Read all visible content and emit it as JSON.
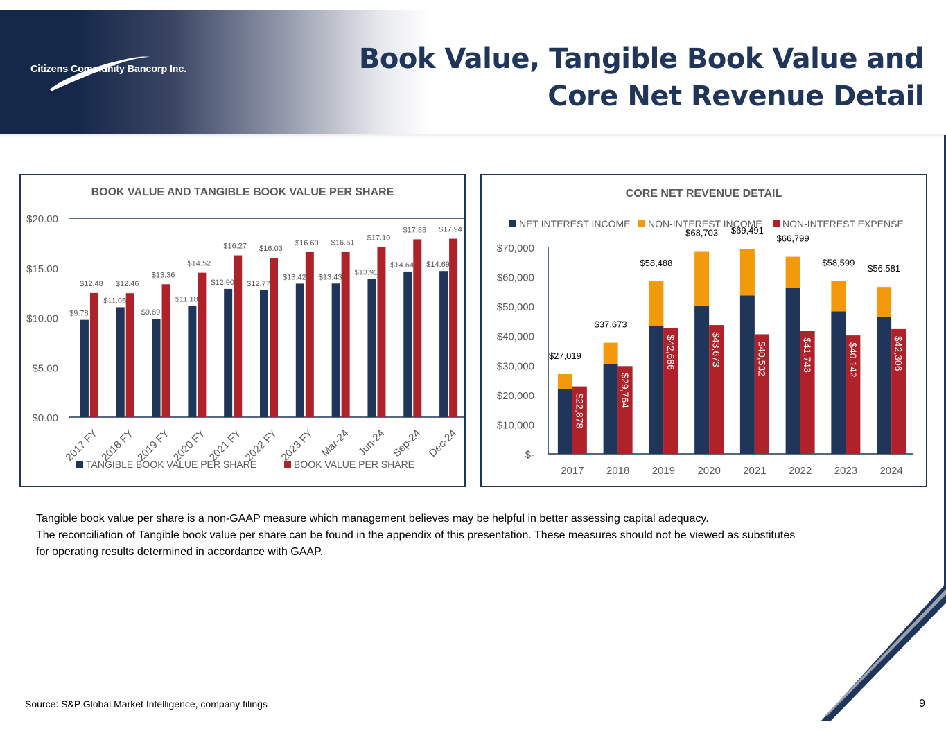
{
  "company": "Citizens Community Bancorp Inc.",
  "title_line1": "Book Value, Tangible Book Value and",
  "title_line2": "Core Net Revenue Detail",
  "notes": [
    "Tangible book value per share is a non-GAAP measure which management believes may be helpful in better assessing capital adequacy.",
    "The reconciliation of Tangible book value per share can be found in the appendix of this presentation. These measures should not be viewed as substitutes",
    "for  operating results determined in accordance with GAAP."
  ],
  "source": "Source: S&P Global Market Intelligence, company filings",
  "page_number": "9",
  "colors": {
    "navy": "#1f3559",
    "red": "#b0222a",
    "orange": "#f39a0c"
  },
  "chart_data": [
    {
      "type": "bar",
      "title": "BOOK VALUE AND TANGIBLE BOOK VALUE PER SHARE",
      "categories": [
        "2017 FY",
        "2018 FY",
        "2019 FY",
        "2020 FY",
        "2021 FY",
        "2022 FY",
        "2023 FY",
        "Mar-24",
        "Jun-24",
        "Sep-24",
        "Dec-24"
      ],
      "series": [
        {
          "name": "TANGIBLE BOOK VALUE PER SHARE",
          "color": "#1f3559",
          "values": [
            9.78,
            11.05,
            9.89,
            11.18,
            12.9,
            12.77,
            13.42,
            13.43,
            13.91,
            14.64,
            14.69
          ],
          "labels": [
            "$9.78",
            "$11.05",
            "$9.89",
            "$11.18",
            "$12.90",
            "$12.77",
            "$13.42",
            "$13.43",
            "$13.91",
            "$14.64",
            "$14.69"
          ]
        },
        {
          "name": "BOOK VALUE PER SHARE",
          "color": "#b0222a",
          "values": [
            12.48,
            12.46,
            13.36,
            14.52,
            16.27,
            16.03,
            16.6,
            16.61,
            17.1,
            17.88,
            17.94
          ],
          "labels": [
            "$12.48",
            "$12.46",
            "$13.36",
            "$14.52",
            "$16.27",
            "$16.03",
            "$16.60",
            "$16.61",
            "$17.10",
            "$17.88",
            "$17.94"
          ]
        }
      ],
      "ylim": [
        0,
        20
      ],
      "yticks": [
        "$0.00",
        "$5.00",
        "$10.00",
        "$15.00",
        "$20.00"
      ],
      "legend": "bottom"
    },
    {
      "type": "bar",
      "title": "CORE NET REVENUE DETAIL",
      "categories": [
        "2017",
        "2018",
        "2019",
        "2020",
        "2021",
        "2022",
        "2023",
        "2024"
      ],
      "series": [
        {
          "name": "NET INTEREST INCOME",
          "color": "#1f3559",
          "stack": "revenue",
          "values": [
            22000,
            30300,
            43400,
            50300,
            53700,
            56300,
            48300,
            46400
          ]
        },
        {
          "name": "NON-INTEREST INCOME",
          "color": "#f39a0c",
          "stack": "revenue",
          "values": [
            5019,
            7373,
            15088,
            18403,
            15791,
            10499,
            10299,
            10181
          ]
        },
        {
          "name": "NON-INTEREST EXPENSE",
          "color": "#b0222a",
          "values": [
            22878,
            29764,
            42686,
            43673,
            40532,
            41743,
            40142,
            42306
          ],
          "labels": [
            "$22,878",
            "$29,764",
            "$42,686",
            "$43,673",
            "$40,532",
            "$41,743",
            "$40,142",
            "$42,306"
          ]
        }
      ],
      "total_labels": [
        "$27,019",
        "$37,673",
        "$58,488",
        "$68,703",
        "$69,491",
        "$66,799",
        "$58,599",
        "$56,581"
      ],
      "ylim": [
        0,
        70000
      ],
      "yticks": [
        "$-",
        "$10,000",
        "$20,000",
        "$30,000",
        "$40,000",
        "$50,000",
        "$60,000",
        "$70,000"
      ],
      "legend": "top"
    }
  ]
}
